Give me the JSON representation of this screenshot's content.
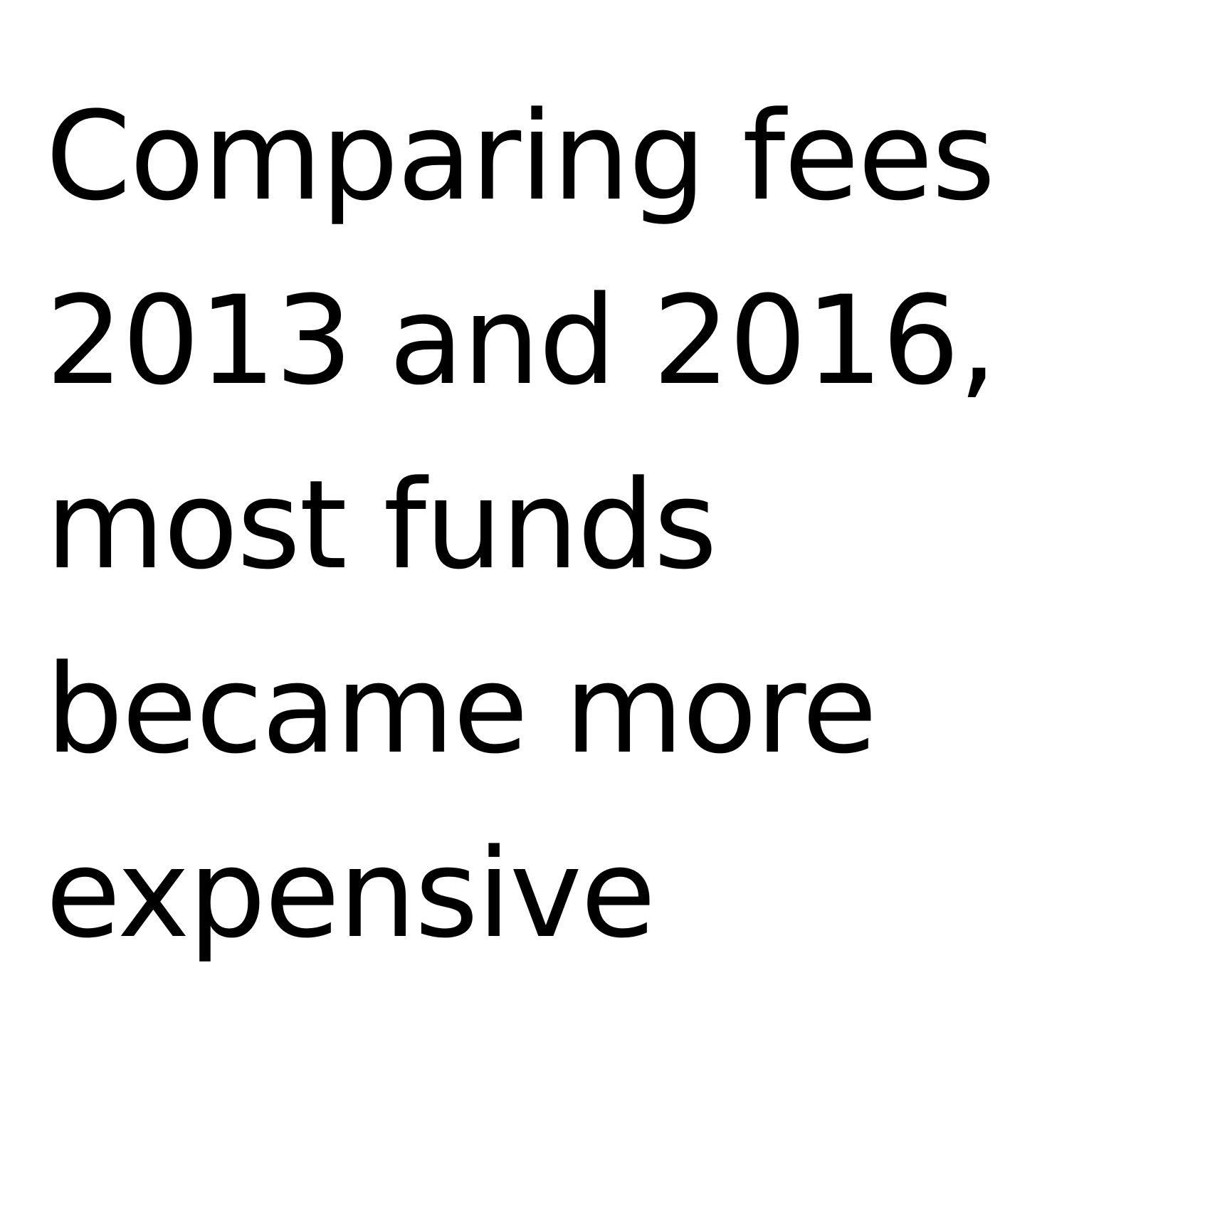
{
  "headline": {
    "lines": [
      "Comparing fees",
      "2013 and 2016,",
      "most funds",
      "became more",
      "expensive"
    ]
  },
  "colors": {
    "background": "#ffffff",
    "text": "#000000"
  }
}
